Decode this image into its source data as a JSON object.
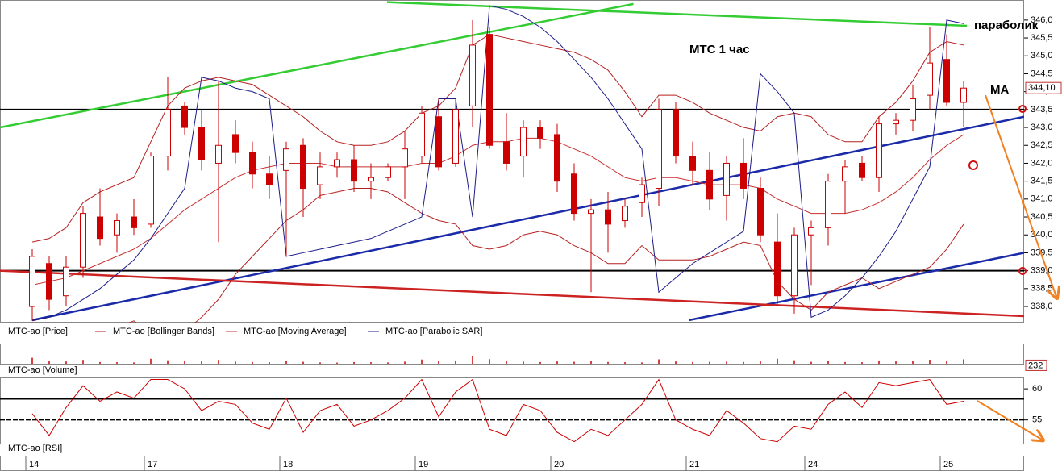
{
  "chart_data": [
    {
      "type": "candlestick",
      "name": "MTC-ao [Price]",
      "color": "#cc0000",
      "annotations": [
        "MTC   1 час",
        "параболик",
        "МА"
      ],
      "categories": [
        "14",
        null,
        null,
        null,
        null,
        null,
        null,
        "17",
        null,
        null,
        null,
        null,
        null,
        null,
        null,
        "18",
        null,
        null,
        null,
        null,
        null,
        null,
        null,
        "19",
        null,
        null,
        null,
        null,
        null,
        null,
        null,
        "20",
        null,
        null,
        null,
        null,
        null,
        null,
        null,
        "21",
        null,
        null,
        null,
        null,
        null,
        null,
        "24",
        null,
        null,
        null,
        null,
        null,
        null,
        null,
        "25",
        null
      ],
      "open": [
        338.0,
        339.2,
        338.3,
        339.1,
        340.5,
        340.0,
        340.5,
        340.3,
        342.2,
        343.6,
        343.0,
        342.0,
        342.8,
        342.3,
        341.7,
        341.8,
        342.5,
        341.4,
        341.9,
        342.1,
        341.5,
        341.6,
        341.9,
        342.2,
        343.3,
        342.0,
        343.6,
        345.6,
        342.6,
        342.2,
        343.0,
        342.8,
        341.7,
        340.6,
        340.7,
        340.4,
        340.9,
        341.3,
        343.5,
        342.2,
        341.8,
        341.1,
        342.0,
        341.3,
        339.8,
        338.3,
        340.0,
        340.2,
        341.5,
        342.0,
        341.6,
        343.1,
        343.2,
        343.9,
        344.9,
        343.7
      ],
      "high": [
        339.6,
        339.4,
        339.4,
        340.8,
        341.3,
        340.6,
        341.0,
        342.3,
        344.4,
        343.7,
        343.5,
        344.3,
        343.2,
        342.6,
        342.2,
        342.6,
        342.7,
        342.3,
        342.3,
        342.5,
        342.0,
        342.0,
        342.9,
        343.6,
        343.8,
        343.8,
        346.0,
        345.8,
        343.4,
        343.2,
        343.2,
        343.1,
        342.0,
        341.0,
        341.2,
        341.0,
        341.6,
        343.8,
        343.7,
        342.6,
        342.3,
        342.2,
        342.7,
        341.6,
        340.6,
        340.2,
        340.4,
        341.7,
        342.1,
        342.2,
        343.3,
        343.4,
        344.2,
        345.8,
        345.6,
        344.3
      ],
      "low": [
        337.6,
        337.9,
        338.0,
        338.8,
        339.7,
        339.5,
        340.0,
        340.2,
        341.8,
        342.8,
        341.8,
        339.8,
        342.0,
        341.3,
        341.0,
        339.4,
        340.5,
        341.0,
        341.6,
        341.2,
        341.0,
        341.5,
        341.0,
        342.0,
        341.8,
        341.9,
        343.0,
        342.4,
        341.8,
        341.6,
        342.4,
        341.2,
        340.4,
        338.4,
        339.5,
        340.2,
        340.5,
        340.8,
        342.0,
        341.4,
        340.7,
        340.4,
        341.0,
        339.8,
        338.0,
        337.8,
        338.6,
        339.7,
        340.6,
        341.5,
        341.2,
        342.8,
        342.9,
        343.5,
        343.6,
        343.0
      ],
      "close": [
        339.4,
        338.2,
        339.1,
        340.6,
        339.9,
        340.4,
        340.2,
        342.2,
        343.5,
        343.0,
        342.1,
        342.5,
        342.3,
        341.7,
        341.4,
        342.4,
        341.3,
        341.9,
        342.1,
        341.5,
        341.6,
        341.9,
        342.4,
        343.4,
        341.9,
        343.5,
        345.3,
        342.5,
        342.0,
        343.0,
        342.7,
        341.5,
        340.6,
        340.7,
        340.3,
        340.8,
        341.4,
        343.5,
        342.2,
        341.8,
        341.0,
        342.0,
        341.3,
        340.0,
        338.3,
        340.0,
        340.2,
        341.5,
        341.9,
        341.6,
        343.1,
        343.2,
        343.8,
        344.8,
        343.7,
        344.1
      ],
      "close_label": "344,10",
      "ylim": [
        337.55,
        346.56
      ],
      "yticks": [
        {
          "value": 338.0,
          "label": "338,0"
        },
        {
          "value": 338.5,
          "label": "338,5"
        },
        {
          "value": 339.0,
          "label": "339,0"
        },
        {
          "value": 339.5,
          "label": "339,5"
        },
        {
          "value": 340.0,
          "label": "340,0"
        },
        {
          "value": 340.5,
          "label": "340,5"
        },
        {
          "value": 341.0,
          "label": "341,0"
        },
        {
          "value": 341.5,
          "label": "341,5"
        },
        {
          "value": 342.0,
          "label": "342,0"
        },
        {
          "value": 342.5,
          "label": "342,5"
        },
        {
          "value": 343.0,
          "label": "343,0"
        },
        {
          "value": 343.5,
          "label": "343,5"
        },
        {
          "value": 344.0,
          "label": "344,0"
        },
        {
          "value": 344.5,
          "label": "344,5"
        },
        {
          "value": 345.0,
          "label": "345,0"
        },
        {
          "value": 345.5,
          "label": "345,5"
        },
        {
          "value": 346.0,
          "label": "346,0"
        }
      ],
      "levels": [
        343.5,
        339.0
      ],
      "series": [
        {
          "name": "MTC-ao [Bollinger Bands]",
          "color": "#b52020",
          "upper": [
            339.8,
            339.9,
            340.2,
            340.9,
            341.2,
            341.4,
            341.6,
            342.6,
            343.6,
            344.1,
            344.3,
            344.4,
            344.3,
            344.2,
            343.9,
            343.6,
            343.3,
            342.9,
            342.6,
            342.5,
            342.5,
            342.6,
            342.9,
            343.4,
            343.6,
            344.1,
            345.3,
            345.6,
            345.5,
            345.4,
            345.3,
            345.2,
            345.1,
            344.9,
            344.6,
            344.0,
            343.3,
            343.9,
            343.9,
            343.7,
            343.4,
            343.2,
            343.0,
            342.9,
            343.3,
            343.4,
            343.3,
            342.8,
            342.6,
            342.6,
            343.3,
            343.7,
            344.3,
            345.1,
            345.4,
            345.3
          ],
          "lower": [
            337.4,
            337.5,
            337.4,
            337.1,
            337.2,
            337.4,
            337.6,
            337.2,
            337.0,
            337.3,
            337.7,
            338.2,
            338.9,
            339.4,
            339.9,
            340.4,
            340.7,
            341.1,
            341.2,
            341.3,
            341.3,
            341.2,
            340.9,
            340.6,
            340.4,
            340.3,
            339.7,
            339.6,
            339.7,
            340.0,
            340.1,
            340.0,
            339.7,
            339.5,
            339.2,
            339.2,
            339.7,
            339.3,
            339.3,
            339.3,
            339.4,
            339.6,
            339.8,
            339.7,
            338.7,
            338.2,
            337.9,
            338.4,
            338.6,
            338.8,
            338.5,
            338.7,
            338.9,
            339.1,
            339.6,
            340.3
          ]
        },
        {
          "name": "MTC-ao [Moving Average]",
          "color": "#c83030",
          "values": [
            338.6,
            338.7,
            338.8,
            339.0,
            339.2,
            339.4,
            339.6,
            339.9,
            340.3,
            340.7,
            341.0,
            341.3,
            341.6,
            341.8,
            341.9,
            342.0,
            342.0,
            342.0,
            341.9,
            341.9,
            341.9,
            341.9,
            341.9,
            342.0,
            342.0,
            342.2,
            342.5,
            342.6,
            342.6,
            342.7,
            342.7,
            342.6,
            342.4,
            342.2,
            341.9,
            341.6,
            341.5,
            341.6,
            341.6,
            341.5,
            341.4,
            341.4,
            341.4,
            341.3,
            341.0,
            340.8,
            340.6,
            340.6,
            340.6,
            340.7,
            340.9,
            341.2,
            341.6,
            342.1,
            342.5,
            342.8
          ]
        },
        {
          "name": "MTC-ao [Parabolic SAR]",
          "color": "#1c1c8a",
          "values": [
            337.6,
            337.7,
            337.9,
            338.2,
            338.5,
            338.9,
            339.3,
            339.9,
            340.6,
            341.3,
            344.4,
            344.3,
            344.1,
            344.0,
            343.8,
            339.4,
            339.5,
            339.6,
            339.7,
            339.8,
            339.9,
            340.1,
            340.3,
            340.5,
            343.8,
            343.8,
            340.5,
            346.4,
            346.3,
            346.1,
            345.8,
            345.4,
            344.9,
            344.4,
            343.8,
            343.1,
            342.4,
            338.4,
            338.8,
            339.2,
            339.5,
            339.8,
            340.1,
            344.5,
            344.0,
            343.4,
            337.7,
            337.9,
            338.3,
            338.8,
            339.4,
            340.1,
            341.0,
            341.9,
            346.0,
            345.9
          ]
        }
      ],
      "trendlines": [
        {
          "color": "#33cc33",
          "x": [
            -1.9,
            35.5
          ],
          "y": [
            343.0,
            346.45
          ]
        },
        {
          "color": "#33cc33",
          "x": [
            20.95,
            55.2
          ],
          "y": [
            346.5,
            345.84
          ]
        },
        {
          "color": "#1a2aa8",
          "x": [
            0,
            58.57
          ],
          "y": [
            337.62,
            343.3
          ]
        },
        {
          "color": "#1a2aa8",
          "x": [
            38.8,
            58.57
          ],
          "y": [
            337.62,
            339.5
          ]
        },
        {
          "color": "#cc2222",
          "x": [
            -1.9,
            58.57
          ],
          "y": [
            339.0,
            337.73
          ]
        }
      ]
    },
    {
      "type": "bar",
      "name": "MTC-ao [Volume]",
      "color": "#cc0000",
      "ylim": [
        0,
        1000
      ],
      "values": [
        310,
        150,
        120,
        200,
        90,
        80,
        70,
        260,
        180,
        140,
        120,
        200,
        110,
        90,
        80,
        150,
        100,
        70,
        60,
        90,
        80,
        70,
        110,
        220,
        130,
        170,
        380,
        240,
        130,
        110,
        90,
        120,
        100,
        150,
        90,
        80,
        70,
        230,
        120,
        90,
        100,
        110,
        90,
        120,
        260,
        180,
        100,
        140,
        90,
        80,
        170,
        120,
        150,
        210,
        140,
        232
      ]
    },
    {
      "type": "line",
      "name": "MTC-ao [RSI]",
      "color": "#cc0000",
      "ylim": [
        51.2,
        61.7
      ],
      "yticks": [
        55,
        60
      ],
      "levels": [
        58.4,
        55
      ],
      "values": [
        56.0,
        52.5,
        57.0,
        60.5,
        58.0,
        59.5,
        58.5,
        61.5,
        61.5,
        60.0,
        56.5,
        58.0,
        57.5,
        54.5,
        53.5,
        58.5,
        53.0,
        56.5,
        57.5,
        54.0,
        55.0,
        56.5,
        58.5,
        61.5,
        55.5,
        59.5,
        61.5,
        53.5,
        52.5,
        57.5,
        56.5,
        53.0,
        51.5,
        53.5,
        52.5,
        55.0,
        57.5,
        61.5,
        55.0,
        53.5,
        52.5,
        56.5,
        54.5,
        52.0,
        51.5,
        54.0,
        53.5,
        57.5,
        59.5,
        57.0,
        61.0,
        60.5,
        61.0,
        61.5,
        57.5,
        58.0
      ]
    }
  ]
}
